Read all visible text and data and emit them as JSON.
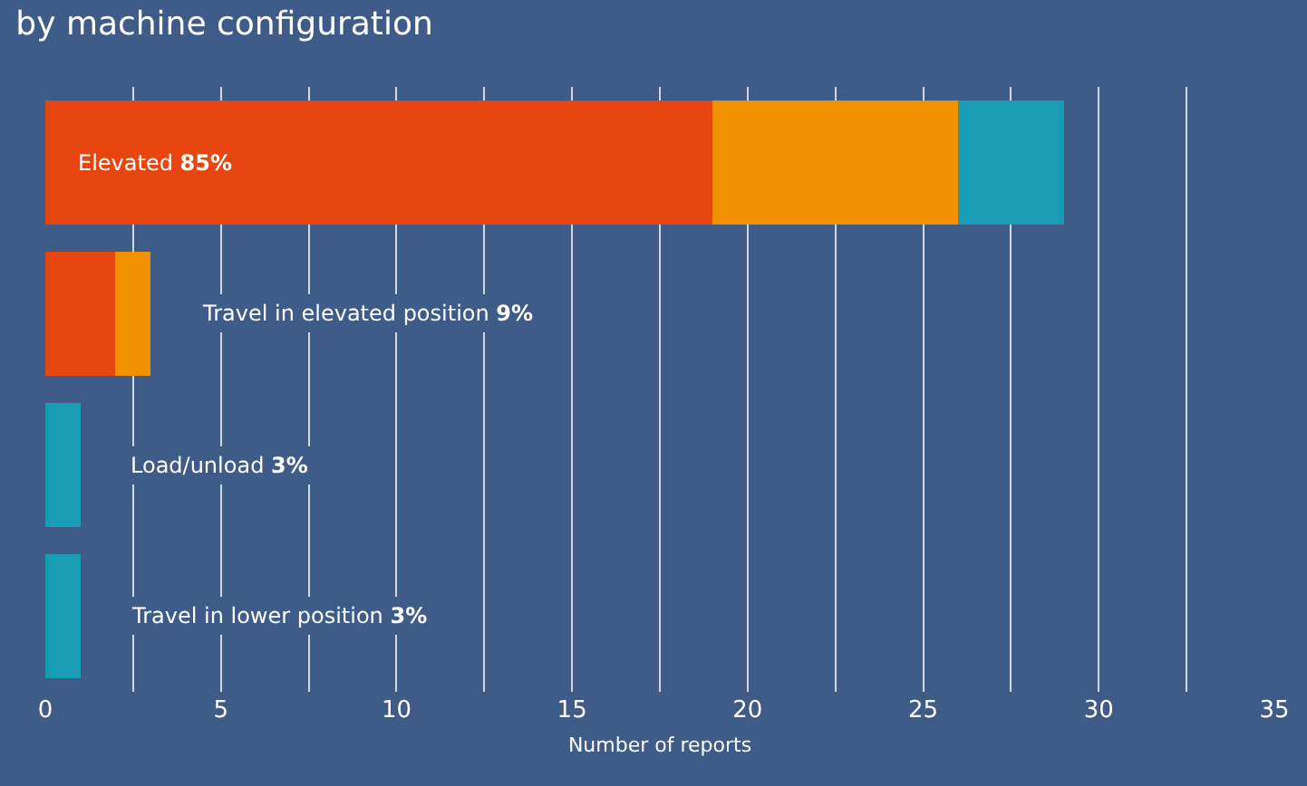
{
  "chart_data": {
    "type": "bar",
    "orientation": "horizontal",
    "stacked": true,
    "title": "by machine configuration",
    "xlabel": "Number of reports",
    "categories": [
      "Elevated 85%",
      "Travel in elevated position 9%",
      "Load/unload 3%",
      "Travel in lower position 3%"
    ],
    "series": [
      {
        "color": "#e84610",
        "values": [
          19,
          2,
          0,
          0
        ]
      },
      {
        "color": "#f29100",
        "values": [
          7,
          1,
          0,
          0
        ]
      },
      {
        "color": "#189db5",
        "values": [
          3,
          0,
          1,
          1
        ]
      }
    ],
    "xlim": [
      0,
      35
    ],
    "xticks": [
      0,
      {
        "value": 2.5,
        "label": null
      },
      5,
      {
        "value": 7.5,
        "label": null
      },
      10,
      {
        "value": 12.5,
        "label": null
      },
      15,
      {
        "value": 17.5,
        "label": null
      },
      20,
      {
        "value": 22.5,
        "label": null
      },
      25,
      {
        "value": 27.5,
        "label": null
      },
      30,
      {
        "value": 32.5,
        "label": null
      },
      35
    ],
    "grid": "x",
    "tick_labels": "x"
  }
}
